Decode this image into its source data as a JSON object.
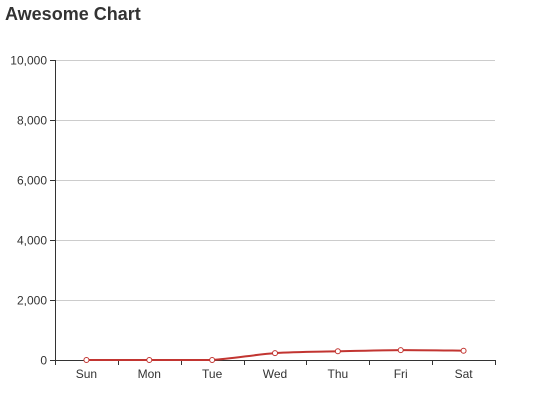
{
  "chart_data": {
    "type": "line",
    "title": "Awesome Chart",
    "xlabel": "",
    "ylabel": "",
    "categories": [
      "Sun",
      "Mon",
      "Tue",
      "Wed",
      "Thu",
      "Fri",
      "Sat"
    ],
    "series": [
      {
        "values": [
          0,
          0,
          0,
          230,
          290,
          330,
          310
        ]
      }
    ],
    "ylim": [
      0,
      10000
    ],
    "yticks": [
      "0",
      "2,000",
      "4,000",
      "6,000",
      "8,000",
      "10,000"
    ],
    "ytick_values": [
      0,
      2000,
      4000,
      6000,
      8000,
      10000
    ],
    "grid": true,
    "colors": {
      "line": "#c23531",
      "grid": "#cccccc",
      "axis": "#333333",
      "marker_fill": "#ffffff"
    }
  }
}
